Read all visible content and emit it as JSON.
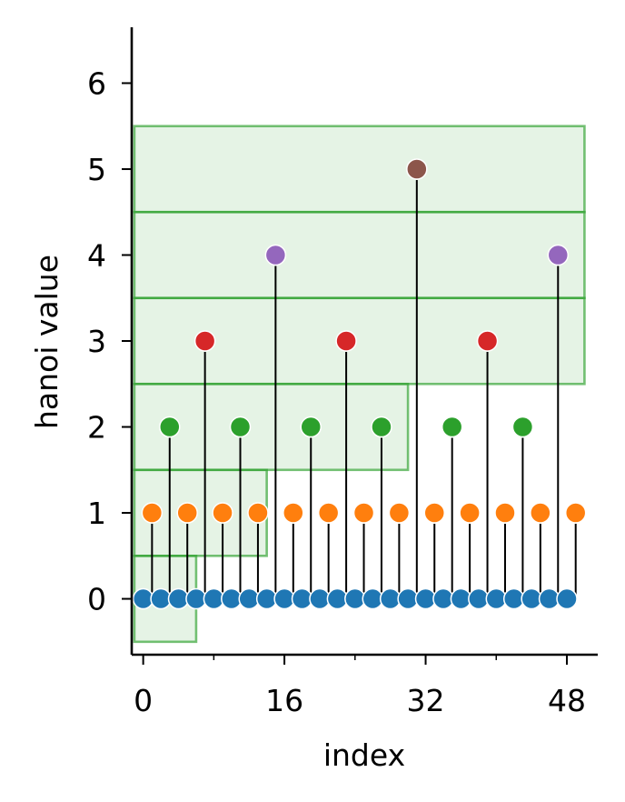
{
  "chart_data": {
    "type": "scatter",
    "title": "",
    "xlabel": "index",
    "ylabel": "hanoi value",
    "xlim": [
      -1.3,
      51.5
    ],
    "ylim": [
      -0.65,
      6.65
    ],
    "x_ticks": [
      0,
      16,
      32,
      48
    ],
    "x_minor_ticks": [
      8,
      24,
      40
    ],
    "y_ticks": [
      0,
      1,
      2,
      3,
      4,
      5,
      6
    ],
    "grid": false,
    "level_colors": [
      "#1f77b4",
      "#ff7f0e",
      "#2ca02c",
      "#d62728",
      "#9467bd",
      "#8c564b"
    ],
    "stem_color": "#000000",
    "band_color": "#2ca02c",
    "bands": [
      {
        "x0": -1,
        "x1": 6,
        "y0": -0.5,
        "y1": 0.5
      },
      {
        "x0": -1,
        "x1": 14,
        "y0": 0.5,
        "y1": 1.5
      },
      {
        "x0": -1,
        "x1": 30,
        "y0": 1.5,
        "y1": 2.5
      },
      {
        "x0": -1,
        "x1": 50,
        "y0": 2.5,
        "y1": 3.5
      },
      {
        "x0": -1,
        "x1": 50,
        "y0": 3.5,
        "y1": 4.5
      },
      {
        "x0": -1,
        "x1": 50,
        "y0": 4.5,
        "y1": 5.5
      }
    ],
    "x": [
      0,
      1,
      2,
      3,
      4,
      5,
      6,
      7,
      8,
      9,
      10,
      11,
      12,
      13,
      14,
      15,
      16,
      17,
      18,
      19,
      20,
      21,
      22,
      23,
      24,
      25,
      26,
      27,
      28,
      29,
      30,
      31,
      32,
      33,
      34,
      35,
      36,
      37,
      38,
      39,
      40,
      41,
      42,
      43,
      44,
      45,
      46,
      47,
      48,
      49
    ],
    "values": [
      0,
      1,
      0,
      2,
      0,
      1,
      0,
      3,
      0,
      1,
      0,
      2,
      0,
      1,
      0,
      4,
      0,
      1,
      0,
      2,
      0,
      1,
      0,
      3,
      0,
      1,
      0,
      2,
      0,
      1,
      0,
      5,
      0,
      1,
      0,
      2,
      0,
      1,
      0,
      3,
      0,
      1,
      0,
      2,
      0,
      1,
      0,
      4,
      0,
      1
    ]
  }
}
